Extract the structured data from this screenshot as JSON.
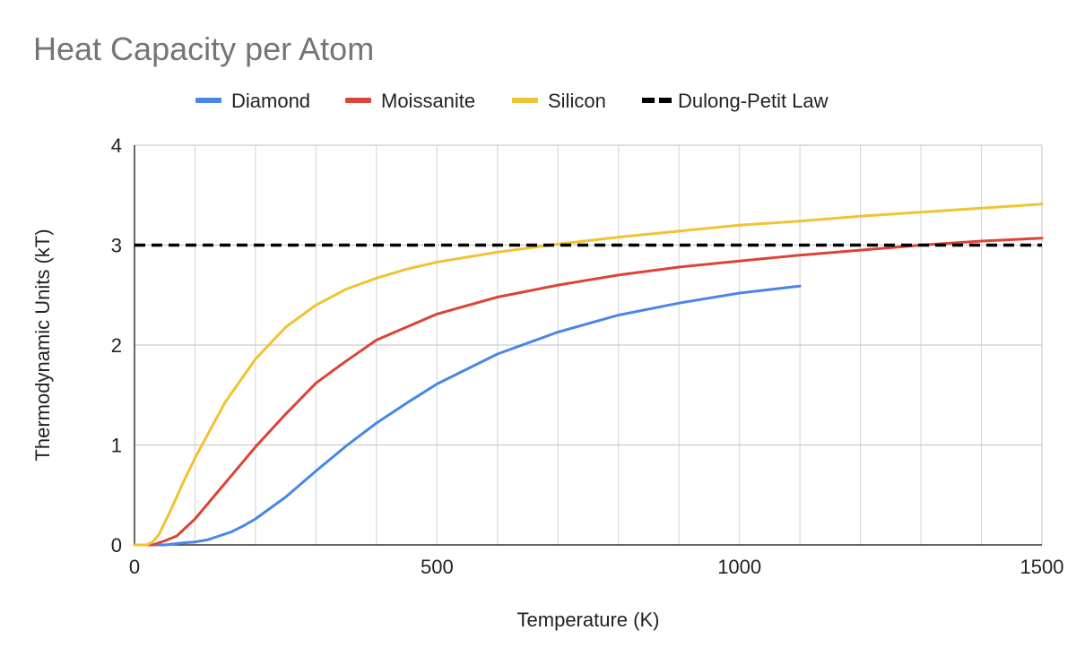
{
  "chart_data": {
    "type": "line",
    "title": "Heat Capacity per Atom",
    "xlabel": "Temperature (K)",
    "ylabel": "Thermodynamic Units (kT)",
    "xlim": [
      0,
      1500
    ],
    "ylim": [
      0,
      4
    ],
    "x_ticks": [
      "0",
      "500",
      "1000",
      "1500"
    ],
    "y_ticks": [
      "0",
      "1",
      "2",
      "3",
      "4"
    ],
    "grid": true,
    "legend_position": "top",
    "series": [
      {
        "name": "Diamond",
        "color": "#4a86e8",
        "dashed": false,
        "points": [
          [
            0,
            0
          ],
          [
            50,
            0.0
          ],
          [
            80,
            0.02
          ],
          [
            100,
            0.03
          ],
          [
            120,
            0.05
          ],
          [
            140,
            0.09
          ],
          [
            160,
            0.13
          ],
          [
            180,
            0.19
          ],
          [
            200,
            0.26
          ],
          [
            250,
            0.48
          ],
          [
            300,
            0.74
          ],
          [
            350,
            0.99
          ],
          [
            400,
            1.22
          ],
          [
            450,
            1.42
          ],
          [
            500,
            1.61
          ],
          [
            600,
            1.91
          ],
          [
            700,
            2.13
          ],
          [
            800,
            2.3
          ],
          [
            900,
            2.42
          ],
          [
            1000,
            2.52
          ],
          [
            1100,
            2.59
          ]
        ]
      },
      {
        "name": "Moissanite",
        "color": "#db4437",
        "dashed": false,
        "points": [
          [
            0,
            0
          ],
          [
            30,
            0.0
          ],
          [
            50,
            0.04
          ],
          [
            70,
            0.09
          ],
          [
            100,
            0.26
          ],
          [
            150,
            0.62
          ],
          [
            200,
            0.98
          ],
          [
            250,
            1.31
          ],
          [
            300,
            1.62
          ],
          [
            350,
            1.84
          ],
          [
            400,
            2.05
          ],
          [
            450,
            2.18
          ],
          [
            500,
            2.31
          ],
          [
            600,
            2.48
          ],
          [
            700,
            2.6
          ],
          [
            800,
            2.7
          ],
          [
            900,
            2.78
          ],
          [
            1000,
            2.84
          ],
          [
            1100,
            2.9
          ],
          [
            1200,
            2.95
          ],
          [
            1300,
            3.0
          ],
          [
            1400,
            3.04
          ],
          [
            1500,
            3.07
          ]
        ]
      },
      {
        "name": "Silicon",
        "color": "#f1c232",
        "dashed": false,
        "points": [
          [
            0,
            0
          ],
          [
            20,
            0.0
          ],
          [
            30,
            0.03
          ],
          [
            40,
            0.1
          ],
          [
            60,
            0.35
          ],
          [
            80,
            0.62
          ],
          [
            100,
            0.87
          ],
          [
            150,
            1.43
          ],
          [
            200,
            1.86
          ],
          [
            250,
            2.18
          ],
          [
            300,
            2.4
          ],
          [
            350,
            2.56
          ],
          [
            400,
            2.67
          ],
          [
            450,
            2.76
          ],
          [
            500,
            2.83
          ],
          [
            600,
            2.93
          ],
          [
            700,
            3.01
          ],
          [
            800,
            3.08
          ],
          [
            900,
            3.14
          ],
          [
            1000,
            3.2
          ],
          [
            1100,
            3.24
          ],
          [
            1200,
            3.29
          ],
          [
            1300,
            3.33
          ],
          [
            1400,
            3.37
          ],
          [
            1500,
            3.41
          ]
        ]
      },
      {
        "name": "Dulong-Petit Law",
        "color": "#000000",
        "dashed": true,
        "points": [
          [
            0,
            3
          ],
          [
            1500,
            3
          ]
        ]
      }
    ]
  }
}
